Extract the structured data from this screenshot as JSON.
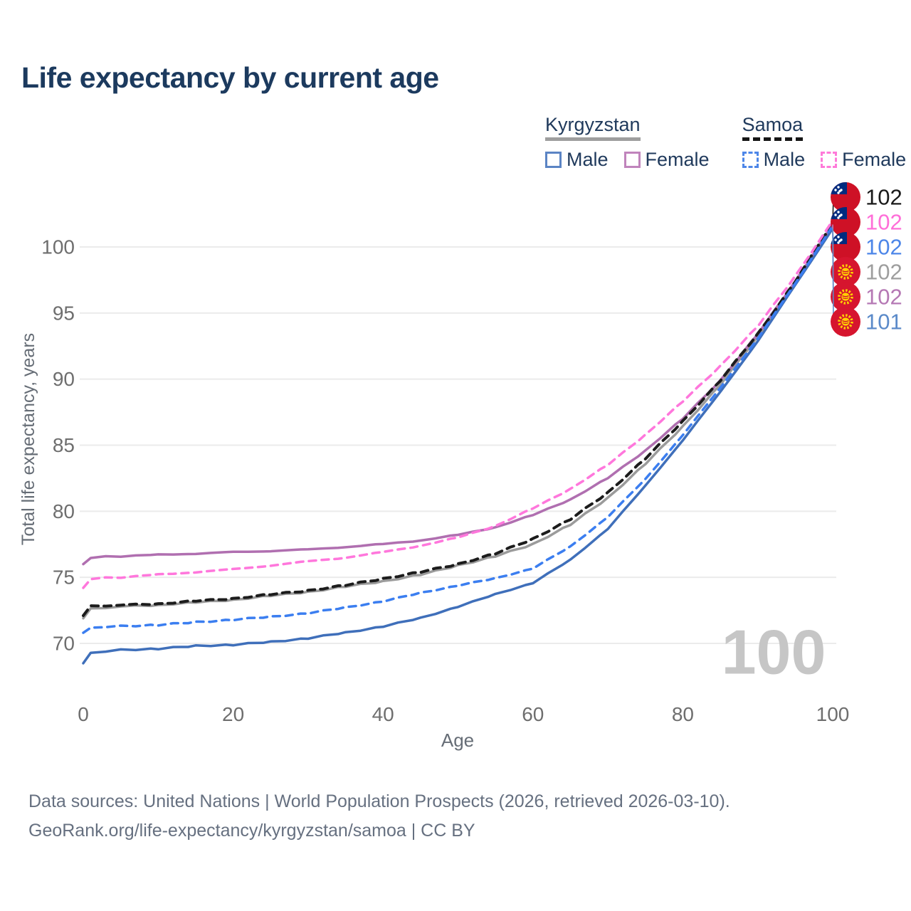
{
  "title": "Life expectancy by current age",
  "legend": {
    "groups": [
      {
        "label": "Kyrgyzstan",
        "line_style": "solid",
        "underline_color": "#9e9e9e",
        "items": [
          {
            "label": "Male",
            "color": "#5b84c4",
            "dashed": false
          },
          {
            "label": "Female",
            "color": "#c084bc",
            "dashed": false
          }
        ]
      },
      {
        "label": "Samoa",
        "line_style": "dashed",
        "underline_color": "#161616",
        "items": [
          {
            "label": "Male",
            "color": "#4d86e8",
            "dashed": true
          },
          {
            "label": "Female",
            "color": "#ff7ad9",
            "dashed": true
          }
        ]
      }
    ]
  },
  "chart_data": {
    "type": "line",
    "title": "Life expectancy by current age",
    "xlabel": "Age",
    "ylabel": "Total life expectancy, years",
    "xlim": [
      0,
      100
    ],
    "ylim": [
      67,
      103
    ],
    "xticks": [
      0,
      20,
      40,
      60,
      80,
      100
    ],
    "yticks": [
      70,
      75,
      80,
      85,
      90,
      95,
      100
    ],
    "grid": true,
    "legend_position": "top-right",
    "x": [
      0,
      1,
      5,
      10,
      15,
      20,
      25,
      30,
      35,
      40,
      45,
      50,
      55,
      60,
      65,
      70,
      75,
      80,
      85,
      90,
      95,
      100
    ],
    "series": [
      {
        "name": "kg_total",
        "country": "Kyrgyzstan",
        "sex": "Both",
        "color": "#9b9b9b",
        "dashed": false,
        "values": [
          71.9,
          72.6,
          72.8,
          72.9,
          73.1,
          73.3,
          73.6,
          73.9,
          74.3,
          74.7,
          75.2,
          75.9,
          76.6,
          77.5,
          79.0,
          81.0,
          83.6,
          86.4,
          89.6,
          93.2,
          97.3,
          101.5
        ]
      },
      {
        "name": "kg_female",
        "country": "Kyrgyzstan",
        "sex": "Female",
        "color": "#b06fb0",
        "dashed": false,
        "values": [
          76.0,
          76.5,
          76.6,
          76.7,
          76.8,
          76.9,
          77.0,
          77.1,
          77.3,
          77.5,
          77.8,
          78.2,
          78.8,
          79.7,
          80.9,
          82.5,
          84.6,
          87.0,
          89.9,
          93.4,
          97.4,
          101.7
        ]
      },
      {
        "name": "kg_male",
        "country": "Kyrgyzstan",
        "sex": "Male",
        "color": "#3f6fba",
        "dashed": false,
        "values": [
          68.5,
          69.3,
          69.5,
          69.6,
          69.8,
          69.9,
          70.1,
          70.4,
          70.8,
          71.3,
          71.9,
          72.8,
          73.7,
          74.6,
          76.3,
          78.7,
          81.9,
          85.4,
          89.0,
          92.9,
          97.1,
          101.4
        ]
      },
      {
        "name": "sm_total",
        "country": "Samoa",
        "sex": "Both",
        "color": "#1c1c1c",
        "dashed": true,
        "values": [
          72.1,
          72.8,
          72.9,
          73.0,
          73.2,
          73.4,
          73.7,
          74.0,
          74.4,
          74.9,
          75.4,
          76.0,
          76.8,
          77.9,
          79.4,
          81.4,
          84.0,
          86.8,
          89.9,
          93.4,
          97.4,
          101.8
        ]
      },
      {
        "name": "sm_female",
        "country": "Samoa",
        "sex": "Female",
        "color": "#ff77dc",
        "dashed": true,
        "values": [
          74.2,
          74.9,
          75.0,
          75.2,
          75.4,
          75.6,
          75.9,
          76.2,
          76.5,
          76.9,
          77.4,
          78.0,
          78.9,
          80.2,
          81.7,
          83.5,
          85.8,
          88.3,
          91.0,
          94.0,
          97.8,
          102.0
        ]
      },
      {
        "name": "sm_male",
        "country": "Samoa",
        "sex": "Male",
        "color": "#3b7ef0",
        "dashed": true,
        "values": [
          70.8,
          71.2,
          71.3,
          71.4,
          71.6,
          71.8,
          72.0,
          72.3,
          72.7,
          73.2,
          73.8,
          74.4,
          74.9,
          75.7,
          77.3,
          79.6,
          82.4,
          85.8,
          89.3,
          93.1,
          97.2,
          101.6
        ]
      }
    ],
    "end_labels": [
      {
        "text": "102",
        "color": "#1a1a1a",
        "flag": "samoa",
        "series": "sm_total"
      },
      {
        "text": "102",
        "color": "#ff6ed8",
        "flag": "samoa",
        "series": "sm_female"
      },
      {
        "text": "102",
        "color": "#4d86e8",
        "flag": "samoa",
        "series": "sm_male"
      },
      {
        "text": "102",
        "color": "#9e9e9e",
        "flag": "kyrgyzstan",
        "series": "kg_total"
      },
      {
        "text": "102",
        "color": "#b578b4",
        "flag": "kyrgyzstan",
        "series": "kg_female"
      },
      {
        "text": "101",
        "color": "#5b8ac9",
        "flag": "kyrgyzstan",
        "series": "kg_male"
      }
    ]
  },
  "watermark": "100",
  "footer": {
    "line1": "Data sources: United Nations | World Population Prospects (2026, retrieved 2026-03-10).",
    "line2": "GeoRank.org/life-expectancy/kyrgyzstan/samoa | CC BY"
  }
}
